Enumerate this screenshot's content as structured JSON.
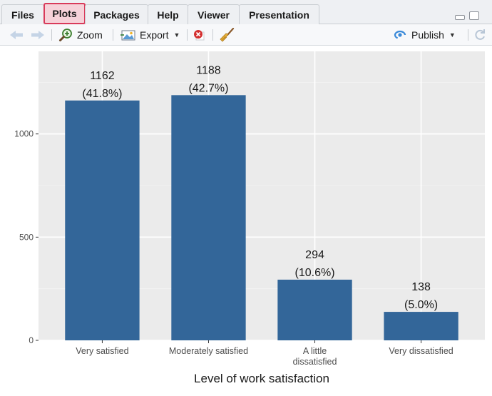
{
  "tabs": [
    {
      "label": "Files",
      "active": false
    },
    {
      "label": "Plots",
      "active": true
    },
    {
      "label": "Packages",
      "active": false
    },
    {
      "label": "Help",
      "active": false
    },
    {
      "label": "Viewer",
      "active": false
    },
    {
      "label": "Presentation",
      "active": false
    }
  ],
  "toolbar": {
    "zoom_label": "Zoom",
    "export_label": "Export",
    "publish_label": "Publish"
  },
  "colors": {
    "bar_fill": "#336699",
    "panel_background": "#ebebeb",
    "active_tab_border": "#d93a5a",
    "publish_icon": "#3b8ad9"
  },
  "icons": [
    "back-arrow-icon",
    "forward-arrow-icon",
    "zoom-icon",
    "export-icon",
    "remove-plot-icon",
    "clear-all-broom-icon",
    "publish-icon",
    "refresh-icon"
  ],
  "chart_data": {
    "type": "bar",
    "categories": [
      "Very satisfied",
      "Moderately satisfied",
      "A little dissatisfied",
      "Very dissatisfied"
    ],
    "category_labels": [
      [
        "Very satisfied"
      ],
      [
        "Moderately satisfied"
      ],
      [
        "A little",
        "dissatisfied"
      ],
      [
        "Very dissatisfied"
      ]
    ],
    "values": [
      1162,
      1188,
      294,
      138
    ],
    "value_labels": [
      "1162",
      "1188",
      "294",
      "138"
    ],
    "percent_labels": [
      "(41.8%)",
      "(42.7%)",
      "(10.6%)",
      "(5.0%)"
    ],
    "xlabel": "Level of work satisfaction",
    "ylabel": "",
    "y_ticks": [
      0,
      500,
      1000
    ],
    "y_tick_labels": [
      "0",
      "500",
      "1000"
    ],
    "ylim": [
      0,
      1400
    ],
    "grid": true
  }
}
